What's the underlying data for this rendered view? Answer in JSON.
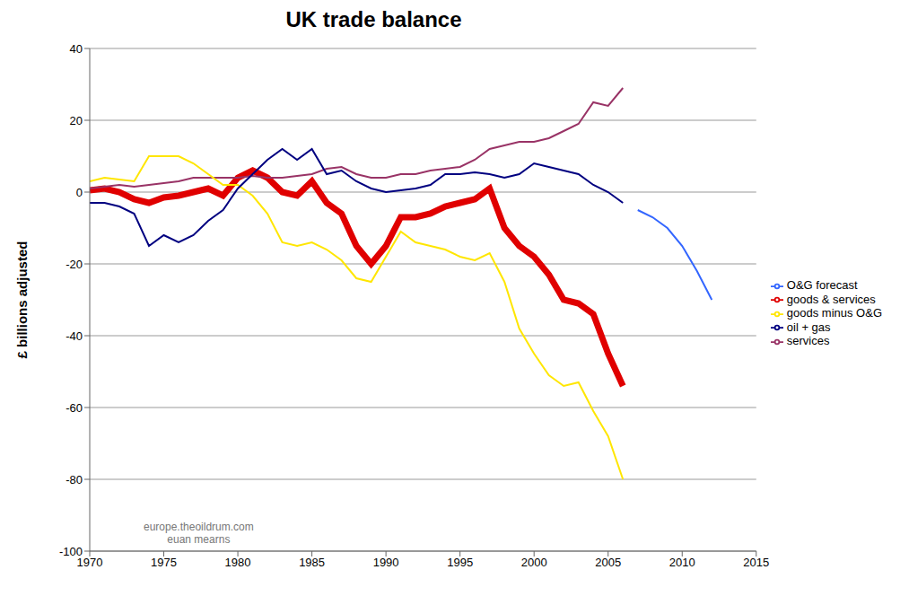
{
  "chart_data": {
    "type": "line",
    "title": "UK trade balance",
    "y_label": "£ billions adjusted",
    "annotations": [
      "europe.theoildrum.com",
      "euan mearns"
    ],
    "x": [
      1970,
      1971,
      1972,
      1973,
      1974,
      1975,
      1976,
      1977,
      1978,
      1979,
      1980,
      1981,
      1982,
      1983,
      1984,
      1985,
      1986,
      1987,
      1988,
      1989,
      1990,
      1991,
      1992,
      1993,
      1994,
      1995,
      1996,
      1997,
      1998,
      1999,
      2000,
      2001,
      2002,
      2003,
      2004,
      2005,
      2006,
      2007,
      2008,
      2009,
      2010,
      2011,
      2012
    ],
    "series": [
      {
        "name": "goods & services",
        "color": "#e00000",
        "values": [
          0.5,
          1,
          0,
          -2,
          -3,
          -1.5,
          -1,
          0,
          1,
          -1,
          4,
          6,
          4,
          0,
          -1,
          3,
          -3,
          -6,
          -15,
          -20,
          -15,
          -7,
          -7,
          -6,
          -4,
          -3,
          -2,
          1,
          -10,
          -15,
          -18,
          -23,
          -30,
          -31,
          -34,
          -45,
          -54,
          null,
          null,
          null,
          null,
          null,
          null
        ]
      },
      {
        "name": "services",
        "color": "#993366",
        "values": [
          1,
          1.5,
          2,
          1.5,
          2,
          2.5,
          3,
          4,
          4,
          4,
          4,
          4.5,
          4,
          4,
          4.5,
          5,
          6.5,
          7,
          5,
          4,
          4,
          5,
          5,
          6,
          6.5,
          7,
          9,
          12,
          13,
          14,
          14,
          15,
          17,
          19,
          25,
          24,
          29,
          null,
          null,
          null,
          null,
          null,
          null
        ]
      },
      {
        "name": "goods minus O&G",
        "color": "#ffe600",
        "values": [
          3,
          4,
          3.5,
          3,
          10,
          10,
          10,
          8,
          5,
          2,
          2,
          -1,
          -6,
          -14,
          -15,
          -14,
          -16,
          -19,
          -24,
          -25,
          -18,
          -11,
          -14,
          -15,
          -16,
          -18,
          -19,
          -17,
          -25,
          -38,
          -45,
          -51,
          -54,
          -53,
          -61,
          -68,
          -80,
          null,
          null,
          null,
          null,
          null,
          null
        ]
      },
      {
        "name": "oil + gas",
        "color": "#000080",
        "values": [
          -3,
          -3,
          -4,
          -6,
          -15,
          -12,
          -14,
          -12,
          -8,
          -5,
          1,
          5,
          9,
          12,
          9,
          12,
          5,
          6,
          3,
          1,
          0,
          0.5,
          1,
          2,
          5,
          5,
          5.5,
          5,
          4,
          5,
          8,
          7,
          6,
          5,
          2,
          0,
          -3,
          null,
          null,
          null,
          null,
          null,
          null
        ]
      },
      {
        "name": "O&G forecast",
        "color": "#3366ff",
        "values": [
          null,
          null,
          null,
          null,
          null,
          null,
          null,
          null,
          null,
          null,
          null,
          null,
          null,
          null,
          null,
          null,
          null,
          null,
          null,
          null,
          null,
          null,
          null,
          null,
          null,
          null,
          null,
          null,
          null,
          null,
          null,
          null,
          null,
          null,
          null,
          null,
          null,
          -5,
          -7,
          -10,
          -15,
          -22,
          -30
        ]
      }
    ],
    "xlim": [
      1970,
      2015
    ],
    "xticks": [
      1970,
      1975,
      1980,
      1985,
      1990,
      1995,
      2000,
      2005,
      2010,
      2015
    ],
    "ylim": [
      -100,
      40
    ],
    "yticks": [
      -100,
      -80,
      -60,
      -40,
      -20,
      0,
      20,
      40
    ],
    "grid": true,
    "legend": "right"
  }
}
